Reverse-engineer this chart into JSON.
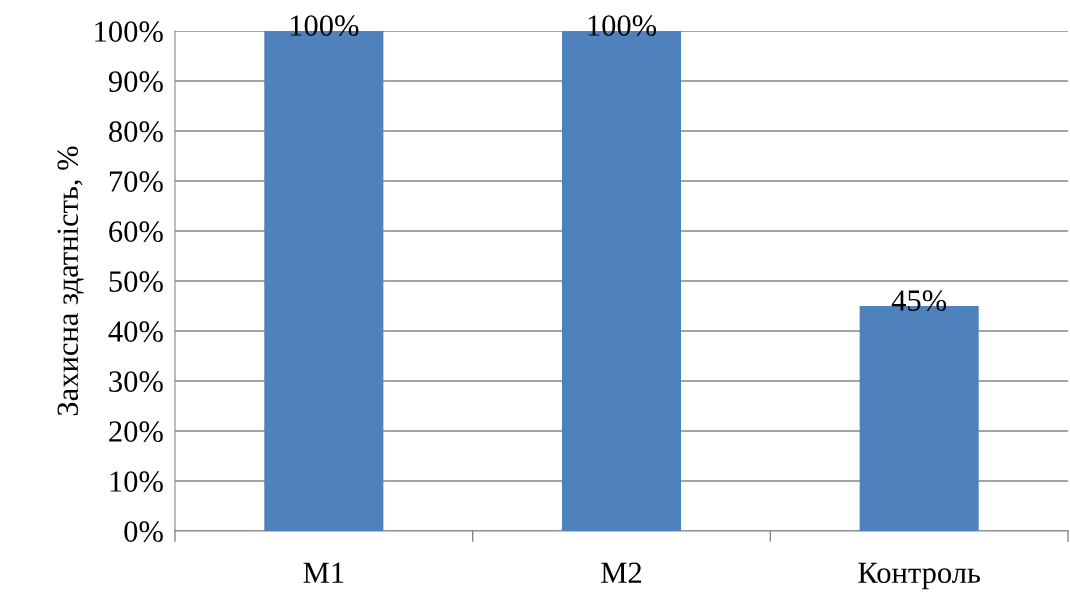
{
  "chart_data": {
    "type": "bar",
    "ylabel": "Захисна здатність, %",
    "categories": [
      "M1",
      "M2",
      "Контроль"
    ],
    "values": [
      100,
      100,
      45
    ],
    "value_labels": [
      "100%",
      "100%",
      "45%"
    ],
    "color": "#4f81bd",
    "ylim": [
      0,
      100
    ],
    "yticks": [
      {
        "value": 0,
        "label": "0%"
      },
      {
        "value": 10,
        "label": "10%"
      },
      {
        "value": 20,
        "label": "20%"
      },
      {
        "value": 30,
        "label": "30%"
      },
      {
        "value": 40,
        "label": "40%"
      },
      {
        "value": 50,
        "label": "50%"
      },
      {
        "value": 60,
        "label": "60%"
      },
      {
        "value": 70,
        "label": "70%"
      },
      {
        "value": 80,
        "label": "80%"
      },
      {
        "value": 90,
        "label": "90%"
      },
      {
        "value": 100,
        "label": "100%"
      }
    ],
    "grid": "y",
    "legend": false
  }
}
